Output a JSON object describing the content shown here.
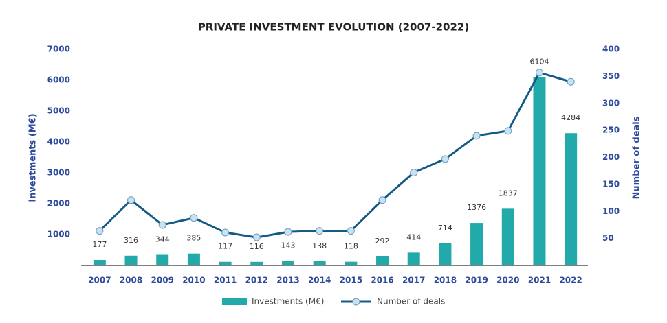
{
  "chart_data": {
    "type": "bar-line",
    "title": "PRIVATE INVESTMENT EVOLUTION (2007-2022)",
    "y_label": "Investments (M€)",
    "y2_label": "Number of deals",
    "categories": [
      "2007",
      "2008",
      "2009",
      "2010",
      "2011",
      "2012",
      "2013",
      "2014",
      "2015",
      "2016",
      "2017",
      "2018",
      "2019",
      "2020",
      "2021",
      "2022"
    ],
    "series": [
      {
        "name": "Investments (M€)",
        "type": "bar",
        "color": "#22a9a9",
        "values": [
          177,
          316,
          344,
          385,
          117,
          116,
          143,
          138,
          118,
          292,
          414,
          714,
          1376,
          1837,
          6104,
          4284
        ]
      },
      {
        "name": "Number of deals",
        "type": "line",
        "axis": "y2",
        "color": "#135a85",
        "marker_color": "#c8e2f1",
        "values": [
          64,
          121,
          75,
          88,
          61,
          52,
          62,
          64,
          64,
          121,
          172,
          197,
          240,
          249,
          357,
          340
        ]
      }
    ],
    "ylim": [
      0,
      7000
    ],
    "yticks": [
      1000,
      2000,
      3000,
      4000,
      5000,
      6000,
      7000
    ],
    "y2lim": [
      0,
      400
    ],
    "y2ticks": [
      50,
      100,
      150,
      200,
      250,
      300,
      350,
      400
    ],
    "legend": "bottom"
  }
}
